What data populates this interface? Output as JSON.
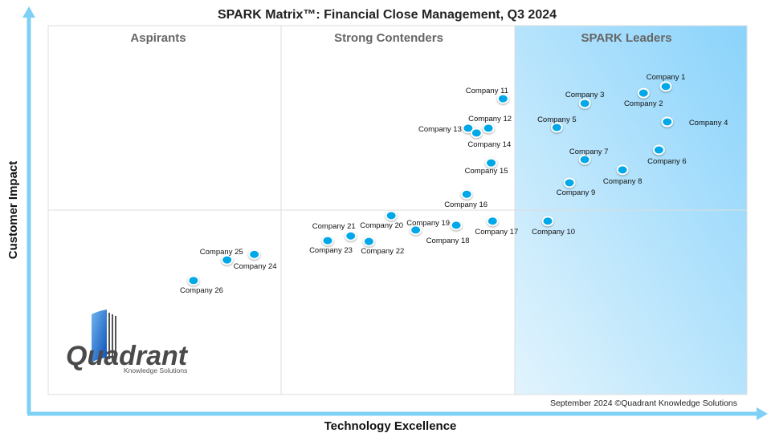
{
  "chart_data": {
    "type": "scatter",
    "title": "SPARK Matrix™: Financial Close Management, Q3 2024",
    "xlabel": "Technology Excellence",
    "ylabel": "Customer Impact",
    "xlim": [
      0,
      100
    ],
    "ylim": [
      0,
      100
    ],
    "grid": false,
    "quadrants": {
      "left": "Aspirants",
      "middle": "Strong Contenders",
      "right": "SPARK Leaders"
    },
    "points": [
      {
        "name": "Company 1",
        "x": 88.4,
        "y": 83.5
      },
      {
        "name": "Company 2",
        "x": 85.2,
        "y": 81.7
      },
      {
        "name": "Company 3",
        "x": 76.8,
        "y": 78.9
      },
      {
        "name": "Company 4",
        "x": 88.6,
        "y": 73.9
      },
      {
        "name": "Company 5",
        "x": 72.8,
        "y": 72.4
      },
      {
        "name": "Company 6",
        "x": 87.4,
        "y": 66.3
      },
      {
        "name": "Company 7",
        "x": 76.8,
        "y": 63.7
      },
      {
        "name": "Company 8",
        "x": 82.2,
        "y": 60.9
      },
      {
        "name": "Company 9",
        "x": 74.6,
        "y": 57.4
      },
      {
        "name": "Company 10",
        "x": 71.5,
        "y": 47.0
      },
      {
        "name": "Company 11",
        "x": 65.1,
        "y": 80.2
      },
      {
        "name": "Company 12",
        "x": 63.0,
        "y": 72.2
      },
      {
        "name": "Company 13",
        "x": 60.1,
        "y": 72.2
      },
      {
        "name": "Company 14",
        "x": 61.3,
        "y": 70.9
      },
      {
        "name": "Company 15",
        "x": 63.4,
        "y": 62.8
      },
      {
        "name": "Company 16",
        "x": 59.9,
        "y": 54.3
      },
      {
        "name": "Company 17",
        "x": 63.6,
        "y": 47.0
      },
      {
        "name": "Company 18",
        "x": 52.6,
        "y": 44.6
      },
      {
        "name": "Company 19",
        "x": 58.4,
        "y": 45.9
      },
      {
        "name": "Company 20",
        "x": 49.1,
        "y": 48.5
      },
      {
        "name": "Company 21",
        "x": 43.3,
        "y": 43.0
      },
      {
        "name": "Company 22",
        "x": 45.9,
        "y": 41.5
      },
      {
        "name": "Company 23",
        "x": 40.0,
        "y": 41.7
      },
      {
        "name": "Company 24",
        "x": 29.5,
        "y": 38.0
      },
      {
        "name": "Company 25",
        "x": 25.6,
        "y": 36.5
      },
      {
        "name": "Company 26",
        "x": 20.8,
        "y": 30.9
      }
    ],
    "colors": {
      "point": "#00a8e8",
      "axis": "#7fd0f5",
      "leaders_gradient_start": "#e2f4fd",
      "leaders_gradient_end": "#8ad3fb"
    }
  },
  "footer": "September 2024 ©Quadrant Knowledge Solutions",
  "logo": {
    "name": "Quadrant",
    "tagline": "Knowledge Solutions"
  }
}
